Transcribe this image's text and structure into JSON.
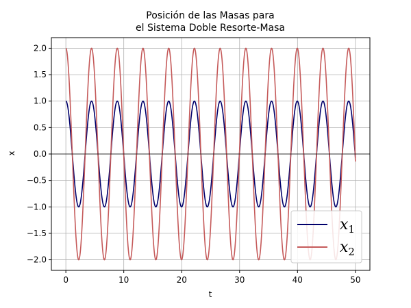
{
  "chart_data": {
    "type": "line",
    "title_line1": "Posición de las Masas para",
    "title_line2": "el Sistema Doble Resorte-Masa",
    "xlabel": "t",
    "ylabel": "x",
    "xlim": [
      -2.5,
      52.5
    ],
    "ylim": [
      -2.2,
      2.2
    ],
    "x_ticks": [
      0,
      10,
      20,
      30,
      40,
      50
    ],
    "x_tick_labels": [
      "0",
      "10",
      "20",
      "30",
      "40",
      "50"
    ],
    "y_ticks": [
      2.0,
      1.5,
      1.0,
      0.5,
      0.0,
      -0.5,
      -1.0,
      -1.5,
      -2.0
    ],
    "y_tick_labels": [
      "2.0",
      "1.5",
      "1.0",
      "0.5",
      "0.0",
      "−0.5",
      "−1.0",
      "−1.5",
      "−2.0"
    ],
    "grid": true,
    "zero_line": true,
    "legend_position": "lower-right",
    "series": [
      {
        "name": "x1",
        "legend_main": "x",
        "legend_sub": "1",
        "color": "#00006b",
        "function": "cos",
        "amplitude": 1.0,
        "period": 4.44,
        "t_range": [
          0,
          50
        ]
      },
      {
        "name": "x2",
        "legend_main": "x",
        "legend_sub": "2",
        "color": "#c55a5a",
        "function": "cos",
        "amplitude": 2.0,
        "period": 4.44,
        "t_range": [
          0,
          50
        ]
      }
    ]
  }
}
